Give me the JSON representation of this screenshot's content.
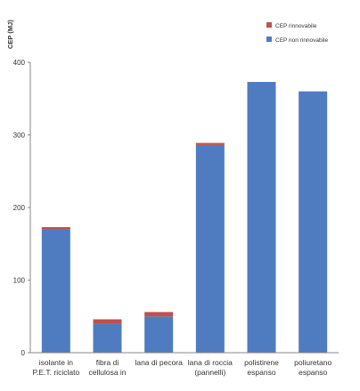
{
  "chart_data": {
    "type": "bar",
    "stacked": true,
    "ylabel": "CEP (MJ)",
    "ylim": [
      0,
      400
    ],
    "yticks": [
      "0",
      "100",
      "200",
      "300",
      "400"
    ],
    "grid": false,
    "legend_position": "top-right",
    "categories": [
      [
        "isolante in",
        "P.E.T. riciclato"
      ],
      [
        "fibra di",
        "cellulosa in"
      ],
      [
        "lana di pecora"
      ],
      [
        "lana di roccia",
        "(pannelli)"
      ],
      [
        "polistirene",
        "espanso"
      ],
      [
        "poliuretano",
        "espanso"
      ]
    ],
    "series": [
      {
        "name": "CEP non rinnovabile",
        "color": "#4f7cc0",
        "values": [
          170,
          40,
          50,
          286,
          373,
          360
        ]
      },
      {
        "name": "CEP rinnovabile",
        "color": "#c0504d",
        "values": [
          3,
          6,
          6,
          3,
          0,
          0
        ]
      }
    ]
  }
}
